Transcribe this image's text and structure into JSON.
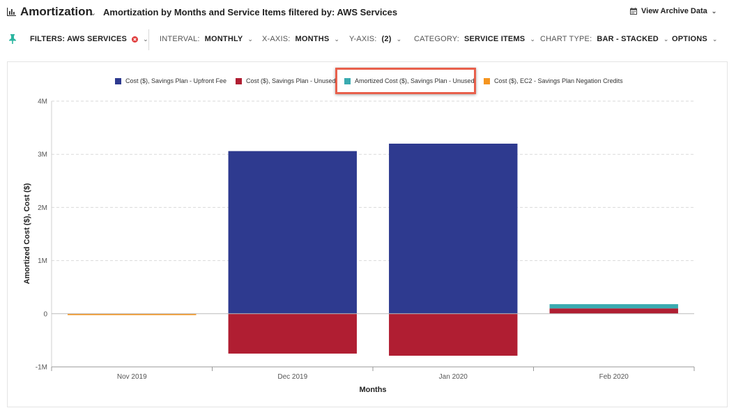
{
  "header": {
    "title": "Amortization",
    "report_title": "Amortization by Months and Service Items filtered by: AWS Services",
    "archive_label": "View Archive Data"
  },
  "filters": {
    "filter_label": "FILTERS: AWS SERVICES",
    "interval_label": "INTERVAL:",
    "interval_value": "MONTHLY",
    "xaxis_label": "X-AXIS:",
    "xaxis_value": "MONTHS",
    "yaxis_label": "Y-AXIS:",
    "yaxis_value": "(2)",
    "category_label": "CATEGORY:",
    "category_value": "SERVICE ITEMS",
    "charttype_label": "CHART TYPE:",
    "charttype_value": "BAR - STACKED",
    "options_label": "OPTIONS"
  },
  "colors": {
    "accent": "#2bb5a0",
    "remove": "#e03a3a"
  },
  "chart_data": {
    "type": "bar",
    "stacked": true,
    "xlabel": "Months",
    "ylabel": "Amortized Cost ($), Cost ($)",
    "ylim": [
      -1000000,
      4000000
    ],
    "yticks": [
      -1000000,
      0,
      1000000,
      2000000,
      3000000,
      4000000
    ],
    "ytick_labels": [
      "-1M",
      "0",
      "1M",
      "2M",
      "3M",
      "4M"
    ],
    "categories": [
      "Nov 2019",
      "Dec 2019",
      "Jan 2020",
      "Feb 2020"
    ],
    "legend_position": "top",
    "grid": true,
    "series": [
      {
        "name": "Cost ($), Savings Plan - Upfront Fee",
        "color": "#2e3a8f",
        "values": [
          0,
          3060000,
          3200000,
          0
        ]
      },
      {
        "name": "Cost ($), Savings Plan - Unused",
        "color": "#b01e32",
        "values": [
          0,
          -750000,
          -790000,
          100000
        ]
      },
      {
        "name": "Amortized Cost ($), Savings Plan - Unused",
        "color": "#3aabb0",
        "values": [
          0,
          0,
          0,
          80000
        ]
      },
      {
        "name": "Cost ($), EC2 - Savings Plan Negation Credits",
        "color": "#f5951f",
        "values": [
          -10000,
          0,
          0,
          0
        ]
      }
    ],
    "highlighted_legend": "Amortized Cost ($), Savings Plan - Unused"
  }
}
